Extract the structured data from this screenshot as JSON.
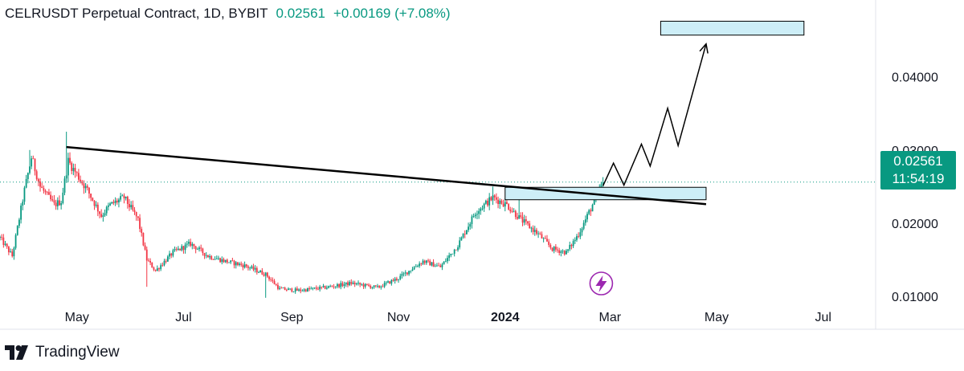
{
  "header": {
    "title": "CELRUSDT Perpetual Contract, 1D, BYBIT",
    "last_price": "0.02561",
    "change": "+0.00169 (+7.08%)"
  },
  "price_tag": {
    "price": "0.02561",
    "countdown": "11:54:19"
  },
  "brand": {
    "name": "TradingView"
  },
  "colors": {
    "up": "#089981",
    "down": "#f23645",
    "box": "#cdeef7",
    "line": "#000000",
    "event": "#9c27b0"
  },
  "icons": {
    "event": "lightning-icon",
    "logo": "tradingview-logo-icon"
  },
  "chart_data": {
    "type": "candlestick",
    "title": "CELRUSDT Perpetual Contract, 1D, BYBIT",
    "y_axis": {
      "ticks": [
        "0.01000",
        "0.02000",
        "0.03000",
        "0.04000"
      ],
      "ylim": [
        0.0055,
        0.0505
      ]
    },
    "x_axis": {
      "ticks": [
        "May",
        "Jul",
        "Sep",
        "Nov",
        "2024",
        "Mar",
        "May",
        "Jul"
      ],
      "bold_ticks": [
        "2024"
      ],
      "xlim": [
        "2023-03-18",
        "2024-07-31"
      ]
    },
    "price_path": [
      [
        "2023-03-18",
        0.018
      ],
      [
        "2023-03-25",
        0.0155
      ],
      [
        "2023-04-01",
        0.0245
      ],
      [
        "2023-04-05",
        0.029
      ],
      [
        "2023-04-10",
        0.025
      ],
      [
        "2023-04-18",
        0.0225
      ],
      [
        "2023-04-22",
        0.023
      ],
      [
        "2023-04-26",
        0.0285
      ],
      [
        "2023-04-30",
        0.027
      ],
      [
        "2023-05-07",
        0.0245
      ],
      [
        "2023-05-15",
        0.021
      ],
      [
        "2023-05-20",
        0.0225
      ],
      [
        "2023-05-28",
        0.0235
      ],
      [
        "2023-06-05",
        0.0205
      ],
      [
        "2023-06-10",
        0.015
      ],
      [
        "2023-06-15",
        0.0135
      ],
      [
        "2023-06-25",
        0.016
      ],
      [
        "2023-07-05",
        0.0172
      ],
      [
        "2023-07-15",
        0.0155
      ],
      [
        "2023-07-25",
        0.0148
      ],
      [
        "2023-08-05",
        0.0142
      ],
      [
        "2023-08-17",
        0.013
      ],
      [
        "2023-08-25",
        0.011
      ],
      [
        "2023-09-05",
        0.0108
      ],
      [
        "2023-09-20",
        0.0112
      ],
      [
        "2023-10-05",
        0.0118
      ],
      [
        "2023-10-20",
        0.0112
      ],
      [
        "2023-11-01",
        0.0125
      ],
      [
        "2023-11-15",
        0.0148
      ],
      [
        "2023-11-25",
        0.014
      ],
      [
        "2023-12-05",
        0.017
      ],
      [
        "2023-12-15",
        0.0215
      ],
      [
        "2023-12-25",
        0.0235
      ],
      [
        "2024-01-02",
        0.0225
      ],
      [
        "2024-01-10",
        0.0205
      ],
      [
        "2024-01-20",
        0.0185
      ],
      [
        "2024-01-28",
        0.0165
      ],
      [
        "2024-02-05",
        0.016
      ],
      [
        "2024-02-12",
        0.0185
      ],
      [
        "2024-02-20",
        0.0225
      ],
      [
        "2024-02-26",
        0.0256
      ]
    ],
    "trendline": {
      "from": [
        "2023-04-25",
        0.0304
      ],
      "to": [
        "2024-04-25",
        0.0226
      ]
    },
    "boxes": [
      {
        "from": "2024-01-01",
        "to": "2024-04-25",
        "bottom": 0.0232,
        "top": 0.0249
      },
      {
        "from": "2024-03-30",
        "to": "2024-06-20",
        "bottom": 0.0457,
        "top": 0.0476
      }
    ],
    "projection": [
      [
        "2024-02-26",
        0.0251
      ],
      [
        "2024-03-03",
        0.0282
      ],
      [
        "2024-03-09",
        0.0252
      ],
      [
        "2024-03-19",
        0.0308
      ],
      [
        "2024-03-24",
        0.0278
      ],
      [
        "2024-04-03",
        0.0357
      ],
      [
        "2024-04-09",
        0.0306
      ],
      [
        "2024-04-25",
        0.0445
      ]
    ],
    "last_price_line": 0.02561,
    "event_marker": "2024-02-25"
  }
}
